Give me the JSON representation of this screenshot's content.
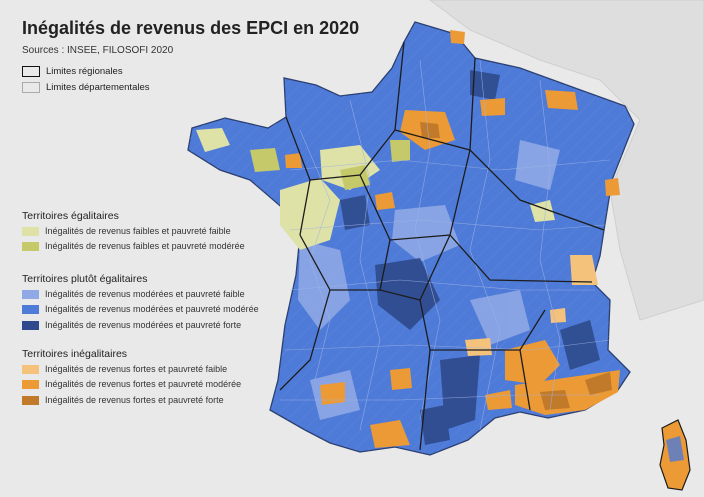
{
  "title": "Inégalités de revenus des EPCI en 2020",
  "sources": "Sources : INSEE, FILOSOFI 2020",
  "limits": {
    "regional": "Limites régionales",
    "departmental": "Limites départementales"
  },
  "legend": [
    {
      "title": "Territoires égalitaires",
      "items": [
        {
          "label": "Inégalités de revenus faibles et pauvreté faible",
          "color": "#dfe2a6"
        },
        {
          "label": "Inégalités de revenus faibles et pauvreté modérée",
          "color": "#c5c96a"
        }
      ]
    },
    {
      "title": "Territoires plutôt égalitaires",
      "items": [
        {
          "label": "Inégalités de revenus modérées et pauvreté faible",
          "color": "#8fa8e6"
        },
        {
          "label": "Inégalités de revenus modérées et pauvreté modérée",
          "color": "#4f7bd8"
        },
        {
          "label": "Inégalités de revenus modérées et pauvreté forte",
          "color": "#2e4a8c"
        }
      ]
    },
    {
      "title": "Territoires inégalitaires",
      "items": [
        {
          "label": "Inégalités de revenus fortes et pauvreté faible",
          "color": "#f4c27a"
        },
        {
          "label": "Inégalités de revenus fortes et pauvreté modérée",
          "color": "#ec9a35"
        },
        {
          "label": "Inégalités de revenus fortes et pauvreté forte",
          "color": "#c17a2a"
        }
      ]
    }
  ]
}
